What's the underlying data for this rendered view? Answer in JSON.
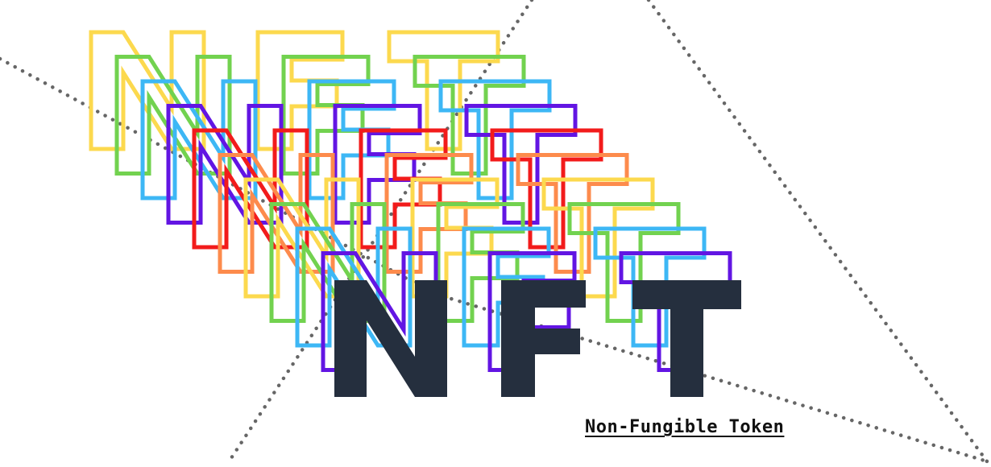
{
  "wordmark": {
    "text": "NFT",
    "letters": [
      "N",
      "F",
      "T"
    ],
    "main_color": "#252f3e"
  },
  "subtitle": "Non-Fungible Token",
  "echo_outline_colors": [
    "#fcd94e",
    "#72d24f",
    "#3db7f5",
    "#6215e3",
    "#f21b1b",
    "#fd8b4c",
    "#fcd94e",
    "#72d24f",
    "#3db7f5",
    "#6215e3"
  ],
  "dotted_line_color": "#666666",
  "background_color": "#ffffff"
}
